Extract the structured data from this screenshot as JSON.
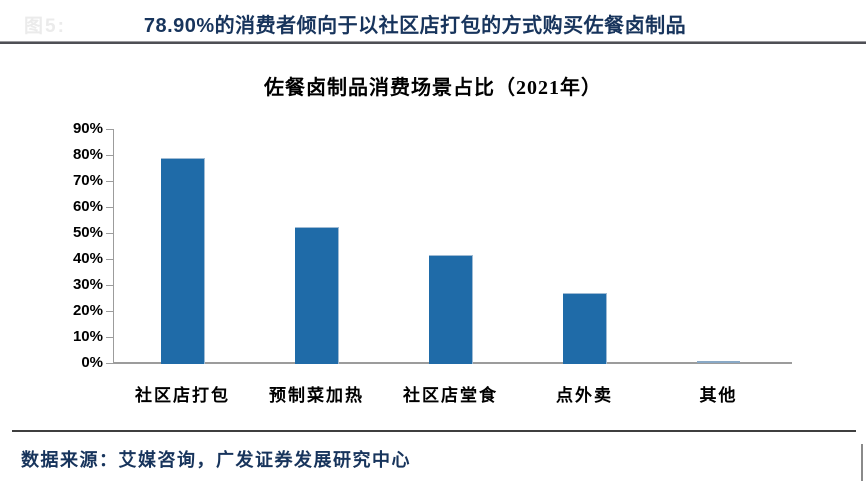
{
  "page": {
    "figure_label": "图5:"
  },
  "header": {
    "title": "78.90%的消费者倾向于以社区店打包的方式购买佐餐卤制品"
  },
  "source": {
    "text": "数据来源：艾媒咨询，广发证券发展研究中心"
  },
  "colors": {
    "title_navy": "#17345C",
    "bar_blue": "#1F6BA8",
    "bar_highlight": "#9FBBD4",
    "small_bar_blue": "#89A9C6",
    "axis_gray": "#9C9C9C"
  },
  "chart_data": {
    "type": "bar",
    "title": "佐餐卤制品消费场景占比（2021年）",
    "categories": [
      "社区店打包",
      "预制菜加热",
      "社区店堂食",
      "点外卖",
      "其他"
    ],
    "values": [
      78.9,
      52.4,
      41.4,
      26.8,
      0.6
    ],
    "unit": "%",
    "xlabel": "",
    "ylabel": "",
    "ylim": [
      0,
      90
    ],
    "ytick_step": 10,
    "ytick_labels": [
      "90%",
      "80%",
      "70%",
      "60%",
      "50%",
      "40%",
      "30%",
      "20%",
      "10%",
      "0%"
    ],
    "grid": false,
    "legend_position": "none"
  }
}
